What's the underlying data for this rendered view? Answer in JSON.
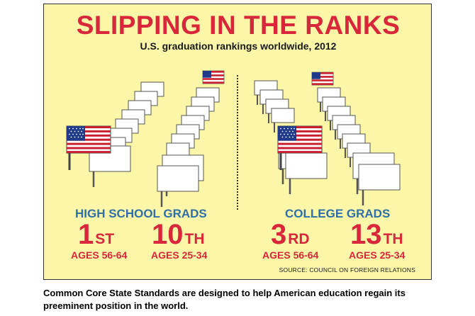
{
  "title": "SLIPPING IN THE RANKS",
  "subtitle": "U.S. graduation rankings worldwide, 2012",
  "sections": [
    {
      "label": "HIGH SCHOOL GRADS",
      "rankings": [
        {
          "rank": "1",
          "suffix": "ST",
          "ages": "AGES 56-64"
        },
        {
          "rank": "10",
          "suffix": "TH",
          "ages": "AGES 25-34"
        }
      ]
    },
    {
      "label": "COLLEGE GRADS",
      "rankings": [
        {
          "rank": "3",
          "suffix": "RD",
          "ages": "AGES 56-64"
        },
        {
          "rank": "13",
          "suffix": "TH",
          "ages": "AGES 25-34"
        }
      ]
    }
  ],
  "source": "SOURCE: COUNCIL ON FOREIGN RELATIONS",
  "caption": "Common Core State Standards are designed to help American education regain its preeminent position in the world.",
  "colors": {
    "background": "#fbf6a8",
    "title": "#d8263a",
    "section_label": "#2f6fa8",
    "flag_red": "#c8202f",
    "flag_blue": "#1f3a8a"
  }
}
